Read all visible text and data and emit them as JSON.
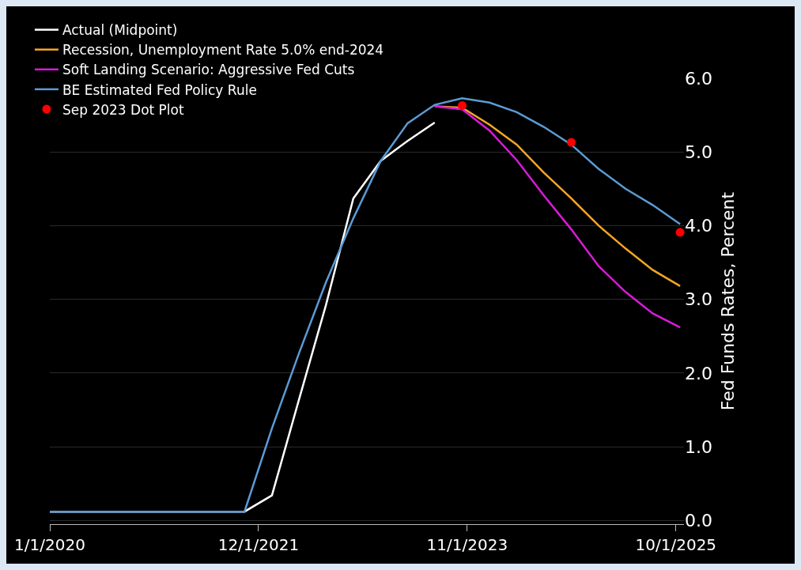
{
  "chart_data": {
    "type": "line",
    "ylabel": "Fed Funds Rates, Percent",
    "xlim": [
      "2020-01-01",
      "2025-10-28"
    ],
    "ylim": [
      -0.05,
      6
    ],
    "xticks": [
      {
        "value": "2020-01-01",
        "label": "1/1/2020"
      },
      {
        "value": "2021-12-01",
        "label": "12/1/2021"
      },
      {
        "value": "2023-11-01",
        "label": "11/1/2023"
      },
      {
        "value": "2025-10-01",
        "label": "10/1/2025"
      }
    ],
    "yticks": [
      {
        "value": 0,
        "label": "0.0"
      },
      {
        "value": 1,
        "label": "1.0"
      },
      {
        "value": 2,
        "label": "2.0"
      },
      {
        "value": 3,
        "label": "3.0"
      },
      {
        "value": 4,
        "label": "4.0"
      },
      {
        "value": 5,
        "label": "5.0"
      },
      {
        "value": 6,
        "label": "6.0"
      }
    ],
    "grid": "y",
    "legend": "top left",
    "line_style": "solid",
    "series": [
      {
        "name": "Actual (Midpoint)",
        "color": "#ffffff",
        "x": [
          "2020-01-01",
          "2021-10-15",
          "2022-01-15",
          "2022-04-15",
          "2022-07-15",
          "2022-10-15",
          "2023-01-15",
          "2023-04-15",
          "2023-07-15"
        ],
        "values": [
          0.12,
          0.12,
          0.34,
          1.63,
          2.92,
          4.37,
          4.88,
          5.15,
          5.4
        ]
      },
      {
        "name": "Recession, Unemployment Rate 5.0% end-2024",
        "color": "#f5a623",
        "x": [
          "2023-07-15",
          "2023-10-15",
          "2024-01-15",
          "2024-04-15",
          "2024-07-15",
          "2024-10-15",
          "2025-01-15",
          "2025-04-15",
          "2025-07-15",
          "2025-10-15"
        ],
        "values": [
          5.62,
          5.6,
          5.37,
          5.1,
          4.72,
          4.37,
          4.0,
          3.69,
          3.4,
          3.18
        ]
      },
      {
        "name": "Soft Landing Scenario: Aggressive Fed Cuts",
        "color": "#d81bd8",
        "x": [
          "2023-07-15",
          "2023-10-15",
          "2024-01-15",
          "2024-04-15",
          "2024-07-15",
          "2024-10-15",
          "2025-01-15",
          "2025-04-15",
          "2025-07-15",
          "2025-10-15"
        ],
        "values": [
          5.62,
          5.58,
          5.29,
          4.89,
          4.41,
          3.95,
          3.45,
          3.1,
          2.81,
          2.62
        ]
      },
      {
        "name": "BE Estimated Fed Policy Rule",
        "color": "#5b9bd5",
        "x": [
          "2020-01-01",
          "2021-10-15",
          "2022-01-15",
          "2022-04-15",
          "2022-07-15",
          "2022-10-15",
          "2023-01-15",
          "2023-04-15",
          "2023-07-15",
          "2023-10-15",
          "2024-01-15",
          "2024-04-15",
          "2024-07-15",
          "2024-10-15",
          "2025-01-15",
          "2025-04-15",
          "2025-07-15",
          "2025-10-15"
        ],
        "values": [
          0.12,
          0.12,
          1.25,
          2.26,
          3.23,
          4.1,
          4.88,
          5.39,
          5.64,
          5.73,
          5.67,
          5.54,
          5.34,
          5.1,
          4.77,
          4.5,
          4.28,
          4.02
        ]
      },
      {
        "name": "Sep 2023 Dot Plot",
        "type": "scatter",
        "marker": "circle",
        "color": "#ff0000",
        "x": [
          "2023-10-15",
          "2024-10-15",
          "2025-10-15"
        ],
        "values": [
          5.63,
          5.13,
          3.91
        ]
      }
    ]
  }
}
